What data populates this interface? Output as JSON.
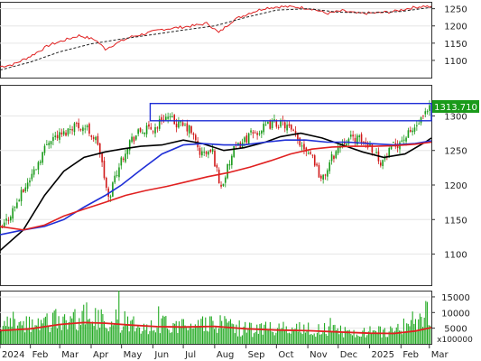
{
  "chart_data": [
    {
      "type": "line",
      "panel": "upper-indicator",
      "x_range": [
        "2024-01-02",
        "2025-03-03"
      ],
      "ylim": [
        1050,
        1270
      ],
      "y_ticks": [
        1100,
        1150,
        1200,
        1250
      ],
      "grid": true,
      "series": [
        {
          "color": "#e02020",
          "style": "solid",
          "x": [
            "2024-01-02",
            "2024-01-15",
            "2024-02-01",
            "2024-02-20",
            "2024-03-05",
            "2024-03-20",
            "2024-04-05",
            "2024-04-15",
            "2024-04-25",
            "2024-05-10",
            "2024-05-25",
            "2024-06-10",
            "2024-06-25",
            "2024-07-10",
            "2024-07-25",
            "2024-08-05",
            "2024-08-20",
            "2024-09-05",
            "2024-09-20",
            "2024-10-05",
            "2024-10-20",
            "2024-11-05",
            "2024-11-20",
            "2024-12-05",
            "2024-12-20",
            "2025-01-10",
            "2025-01-25",
            "2025-02-10",
            "2025-02-25",
            "2025-03-03"
          ],
          "values": [
            1082,
            1088,
            1112,
            1145,
            1158,
            1172,
            1160,
            1133,
            1148,
            1168,
            1178,
            1190,
            1195,
            1200,
            1208,
            1180,
            1218,
            1238,
            1252,
            1256,
            1255,
            1250,
            1236,
            1244,
            1236,
            1238,
            1242,
            1252,
            1258,
            1254
          ]
        },
        {
          "color": "#222222",
          "style": "dashed",
          "x": [
            "2024-01-02",
            "2024-02-01",
            "2024-03-01",
            "2024-04-01",
            "2024-05-01",
            "2024-06-01",
            "2024-07-01",
            "2024-08-01",
            "2024-09-01",
            "2024-10-01",
            "2024-11-01",
            "2024-12-01",
            "2025-01-01",
            "2025-02-01",
            "2025-03-03"
          ],
          "values": [
            1072,
            1095,
            1125,
            1148,
            1162,
            1175,
            1188,
            1200,
            1225,
            1246,
            1250,
            1240,
            1238,
            1242,
            1254
          ]
        }
      ]
    },
    {
      "type": "candlestick",
      "panel": "price",
      "x_range": [
        "2024-01-02",
        "2025-03-03"
      ],
      "x_ticks": [
        "2024",
        "Feb",
        "Mar",
        "Apr",
        "May",
        "Jun",
        "Jul",
        "Aug",
        "Sep",
        "Oct",
        "Nov",
        "Dec",
        "2025",
        "Feb",
        "Mar"
      ],
      "ylim": [
        1055,
        1345
      ],
      "y_ticks": [
        1100,
        1150,
        1200,
        1250,
        1300
      ],
      "grid": true,
      "last_price_label": "1313.710",
      "ohlc_anchors": {
        "x": [
          "2024-01-02",
          "2024-01-20",
          "2024-02-05",
          "2024-02-20",
          "2024-03-05",
          "2024-03-15",
          "2024-03-28",
          "2024-04-08",
          "2024-04-18",
          "2024-04-25",
          "2024-05-08",
          "2024-05-20",
          "2024-06-03",
          "2024-06-12",
          "2024-06-25",
          "2024-07-08",
          "2024-07-18",
          "2024-07-30",
          "2024-08-07",
          "2024-08-20",
          "2024-09-03",
          "2024-09-16",
          "2024-09-28",
          "2024-10-10",
          "2024-10-24",
          "2024-11-05",
          "2024-11-15",
          "2024-11-25",
          "2024-12-06",
          "2024-12-18",
          "2025-01-02",
          "2025-01-13",
          "2025-01-24",
          "2025-02-10",
          "2025-02-24",
          "2025-03-03"
        ],
        "close": [
          1132,
          1178,
          1222,
          1268,
          1274,
          1288,
          1282,
          1260,
          1178,
          1215,
          1262,
          1278,
          1282,
          1300,
          1288,
          1280,
          1245,
          1248,
          1195,
          1250,
          1270,
          1280,
          1290,
          1287,
          1262,
          1245,
          1205,
          1240,
          1265,
          1268,
          1257,
          1232,
          1255,
          1275,
          1298,
          1313.71
        ]
      },
      "series": [
        {
          "kind": "moving-average",
          "color": "#000000",
          "x": [
            "2024-01-02",
            "2024-01-25",
            "2024-02-15",
            "2024-03-05",
            "2024-03-25",
            "2024-04-15",
            "2024-05-01",
            "2024-05-20",
            "2024-06-10",
            "2024-07-01",
            "2024-07-20",
            "2024-08-10",
            "2024-08-30",
            "2024-09-20",
            "2024-10-05",
            "2024-10-25",
            "2024-11-15",
            "2024-12-05",
            "2024-12-25",
            "2025-01-15",
            "2025-02-05",
            "2025-02-25",
            "2025-03-03"
          ],
          "values": [
            1105,
            1135,
            1185,
            1220,
            1240,
            1248,
            1252,
            1256,
            1258,
            1265,
            1260,
            1250,
            1254,
            1262,
            1270,
            1275,
            1268,
            1258,
            1248,
            1240,
            1245,
            1262,
            1268
          ]
        },
        {
          "kind": "moving-average",
          "color": "#1f2fd6",
          "x": [
            "2024-01-02",
            "2024-01-25",
            "2024-02-15",
            "2024-03-05",
            "2024-03-25",
            "2024-04-15",
            "2024-05-01",
            "2024-05-20",
            "2024-06-10",
            "2024-07-01",
            "2024-07-20",
            "2024-08-10",
            "2024-08-30",
            "2024-09-20",
            "2024-10-10",
            "2024-10-30",
            "2024-11-20",
            "2024-12-10",
            "2025-01-01",
            "2025-01-25",
            "2025-02-15",
            "2025-03-03"
          ],
          "values": [
            1128,
            1135,
            1140,
            1150,
            1168,
            1185,
            1200,
            1222,
            1245,
            1258,
            1260,
            1258,
            1258,
            1262,
            1265,
            1265,
            1262,
            1262,
            1260,
            1258,
            1260,
            1264
          ]
        },
        {
          "kind": "moving-average",
          "color": "#e02020",
          "x": [
            "2024-01-02",
            "2024-01-25",
            "2024-02-15",
            "2024-03-05",
            "2024-03-25",
            "2024-04-15",
            "2024-05-05",
            "2024-05-25",
            "2024-06-15",
            "2024-07-05",
            "2024-07-25",
            "2024-08-15",
            "2024-09-05",
            "2024-09-25",
            "2024-10-15",
            "2024-11-05",
            "2024-11-25",
            "2024-12-15",
            "2025-01-05",
            "2025-01-25",
            "2025-02-15",
            "2025-03-03"
          ],
          "values": [
            1140,
            1135,
            1142,
            1155,
            1165,
            1175,
            1185,
            1192,
            1198,
            1205,
            1212,
            1218,
            1226,
            1235,
            1245,
            1252,
            1255,
            1256,
            1256,
            1257,
            1259,
            1262
          ]
        }
      ],
      "annotations": [
        {
          "kind": "rectangle",
          "color": "#1f2fd6",
          "x": [
            "2024-06-01",
            "2025-03-03"
          ],
          "y": [
            1293,
            1318
          ]
        }
      ]
    },
    {
      "type": "bar",
      "panel": "volume",
      "x_range": [
        "2024-01-02",
        "2025-03-03"
      ],
      "ylim": [
        0,
        17000
      ],
      "y_ticks": [
        5000,
        10000,
        15000
      ],
      "unit_label": "x100000",
      "bar_color": "#22aa22",
      "volume_anchors": {
        "x": [
          "2024-01-02",
          "2024-02-01",
          "2024-03-01",
          "2024-03-25",
          "2024-04-10",
          "2024-04-25",
          "2024-05-20",
          "2024-06-15",
          "2024-07-10",
          "2024-08-05",
          "2024-09-01",
          "2024-10-01",
          "2024-11-01",
          "2024-12-01",
          "2025-01-01",
          "2025-02-01",
          "2025-03-03"
        ],
        "values": [
          6000,
          6500,
          8200,
          9500,
          8000,
          7800,
          6800,
          6200,
          6400,
          6500,
          4800,
          5200,
          5000,
          4300,
          3800,
          5400,
          7600
        ]
      },
      "series": [
        {
          "kind": "volume-average",
          "color": "#e02020",
          "x": [
            "2024-01-02",
            "2024-02-01",
            "2024-03-01",
            "2024-03-25",
            "2024-04-15",
            "2024-05-10",
            "2024-06-05",
            "2024-07-01",
            "2024-08-01",
            "2024-09-01",
            "2024-10-01",
            "2024-11-01",
            "2024-12-01",
            "2025-01-01",
            "2025-01-25",
            "2025-02-15",
            "2025-03-03"
          ],
          "values": [
            4200,
            4800,
            6200,
            6800,
            6600,
            6000,
            5500,
            5400,
            5600,
            4800,
            4400,
            4200,
            3800,
            3400,
            3300,
            4100,
            5200
          ]
        }
      ]
    }
  ]
}
